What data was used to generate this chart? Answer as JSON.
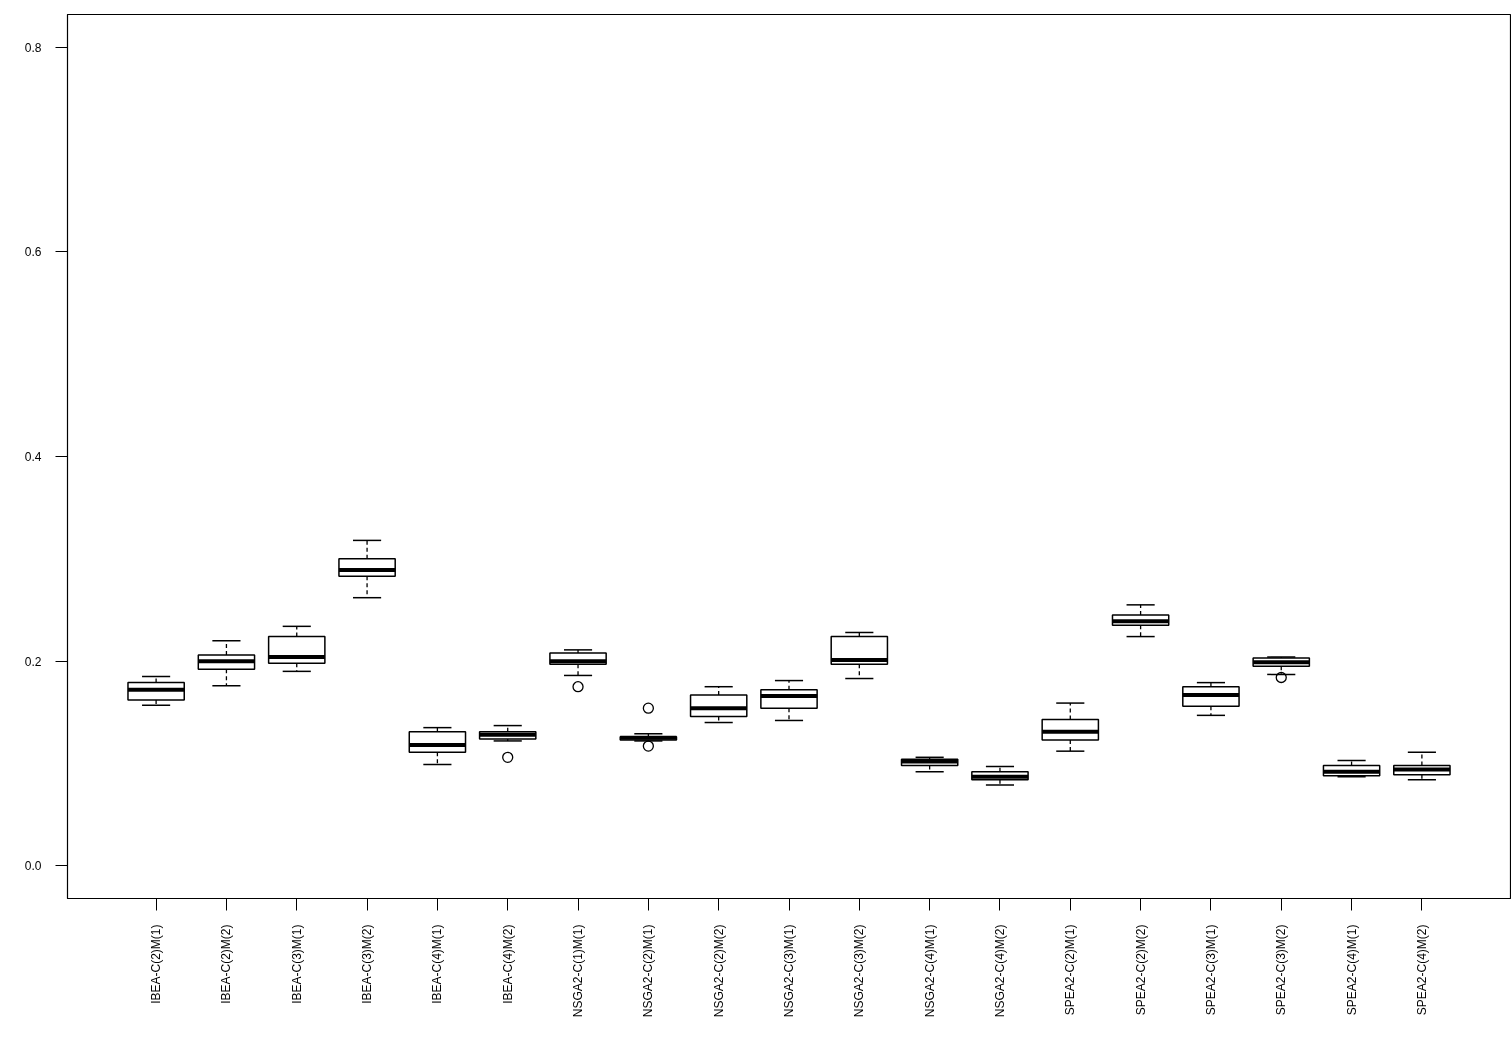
{
  "chart_data": {
    "type": "box",
    "categories": [
      "IBEA-C(2)M(1)",
      "IBEA-C(2)M(2)",
      "IBEA-C(3)M(1)",
      "IBEA-C(3)M(2)",
      "IBEA-C(4)M(1)",
      "IBEA-C(4)M(2)",
      "NSGA2-C(1)M(1)",
      "NSGA2-C(2)M(1)",
      "NSGA2-C(2)M(2)",
      "NSGA2-C(3)M(1)",
      "NSGA2-C(3)M(2)",
      "NSGA2-C(4)M(1)",
      "NSGA2-C(4)M(2)",
      "SPEA2-C(2)M(1)",
      "SPEA2-C(2)M(2)",
      "SPEA2-C(3)M(1)",
      "SPEA2-C(3)M(2)",
      "SPEA2-C(4)M(1)",
      "SPEA2-C(4)M(2)"
    ],
    "boxes": [
      {
        "low": 0.157,
        "q1": 0.162,
        "median": 0.172,
        "q3": 0.179,
        "high": 0.185
      },
      {
        "low": 0.176,
        "q1": 0.192,
        "median": 0.2,
        "q3": 0.206,
        "high": 0.22
      },
      {
        "low": 0.19,
        "q1": 0.198,
        "median": 0.204,
        "q3": 0.224,
        "high": 0.234
      },
      {
        "low": 0.262,
        "q1": 0.283,
        "median": 0.289,
        "q3": 0.3,
        "high": 0.318
      },
      {
        "low": 0.099,
        "q1": 0.111,
        "median": 0.118,
        "q3": 0.131,
        "high": 0.135
      },
      {
        "low": 0.122,
        "q1": 0.124,
        "median": 0.128,
        "q3": 0.131,
        "high": 0.137,
        "outliers": [
          0.106
        ]
      },
      {
        "low": 0.186,
        "q1": 0.197,
        "median": 0.2,
        "q3": 0.208,
        "high": 0.211,
        "outliers": [
          0.175
        ]
      },
      {
        "low": 0.122,
        "q1": 0.123,
        "median": 0.125,
        "q3": 0.126,
        "high": 0.129,
        "outliers": [
          0.154,
          0.117
        ]
      },
      {
        "low": 0.14,
        "q1": 0.146,
        "median": 0.154,
        "q3": 0.167,
        "high": 0.175
      },
      {
        "low": 0.142,
        "q1": 0.154,
        "median": 0.166,
        "q3": 0.172,
        "high": 0.181
      },
      {
        "low": 0.183,
        "q1": 0.197,
        "median": 0.201,
        "q3": 0.224,
        "high": 0.228
      },
      {
        "low": 0.092,
        "q1": 0.098,
        "median": 0.102,
        "q3": 0.104,
        "high": 0.106
      },
      {
        "low": 0.079,
        "q1": 0.084,
        "median": 0.087,
        "q3": 0.092,
        "high": 0.097
      },
      {
        "low": 0.112,
        "q1": 0.123,
        "median": 0.131,
        "q3": 0.143,
        "high": 0.159
      },
      {
        "low": 0.224,
        "q1": 0.235,
        "median": 0.239,
        "q3": 0.245,
        "high": 0.255
      },
      {
        "low": 0.147,
        "q1": 0.156,
        "median": 0.167,
        "q3": 0.175,
        "high": 0.179
      },
      {
        "low": 0.187,
        "q1": 0.195,
        "median": 0.199,
        "q3": 0.203,
        "high": 0.204,
        "outliers": [
          0.184
        ]
      },
      {
        "low": 0.087,
        "q1": 0.088,
        "median": 0.092,
        "q3": 0.098,
        "high": 0.103
      },
      {
        "low": 0.084,
        "q1": 0.089,
        "median": 0.094,
        "q3": 0.098,
        "high": 0.111
      }
    ],
    "ylim": [
      -0.032,
      0.832
    ],
    "yticks": [
      {
        "value": 0,
        "label": "0.0"
      },
      0.2,
      0.4,
      0.6,
      0.8
    ]
  }
}
